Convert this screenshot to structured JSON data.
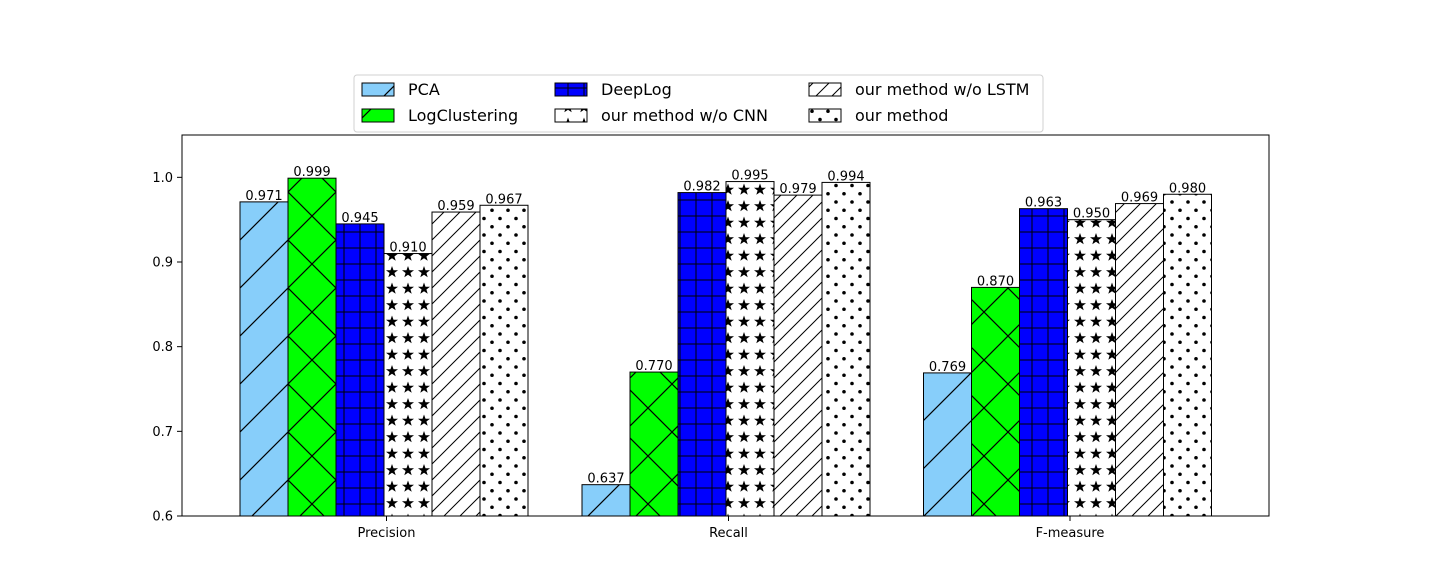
{
  "chart_data": {
    "type": "bar",
    "categories": [
      "Precision",
      "Recall",
      "F-measure"
    ],
    "series": [
      {
        "name": "PCA",
        "values": [
          0.971,
          0.637,
          0.769
        ],
        "color": "#87cefa",
        "hatch": "diagonal"
      },
      {
        "name": "LogClustering",
        "values": [
          0.999,
          0.77,
          0.87
        ],
        "color": "#00ff00",
        "hatch": "cross-diagonal"
      },
      {
        "name": "DeepLog",
        "values": [
          0.945,
          0.982,
          0.963
        ],
        "color": "#0000ff",
        "hatch": "grid"
      },
      {
        "name": "our method w/o CNN",
        "values": [
          0.91,
          0.995,
          0.95
        ],
        "color": "#ffffff",
        "hatch": "stars"
      },
      {
        "name": "our method w/o LSTM",
        "values": [
          0.959,
          0.979,
          0.969
        ],
        "color": "#ffffff",
        "hatch": "fine-diagonal"
      },
      {
        "name": "our method",
        "values": [
          0.967,
          0.994,
          0.98
        ],
        "color": "#ffffff",
        "hatch": "dots"
      }
    ],
    "data_labels": [
      [
        "0.971",
        "0.637",
        "0.769"
      ],
      [
        "0.999",
        "0.770",
        "0.870"
      ],
      [
        "0.945",
        "0.982",
        "0.963"
      ],
      [
        "0.910",
        "0.995",
        "0.950"
      ],
      [
        "0.959",
        "0.979",
        "0.969"
      ],
      [
        "0.967",
        "0.994",
        "0.980"
      ]
    ],
    "yticks": [
      "0.6",
      "0.7",
      "0.8",
      "0.9",
      "1.0"
    ],
    "ylim": [
      0.6,
      1.05
    ],
    "title": "",
    "xlabel": "",
    "ylabel": "",
    "grid": false,
    "legend_position": "top-center"
  }
}
